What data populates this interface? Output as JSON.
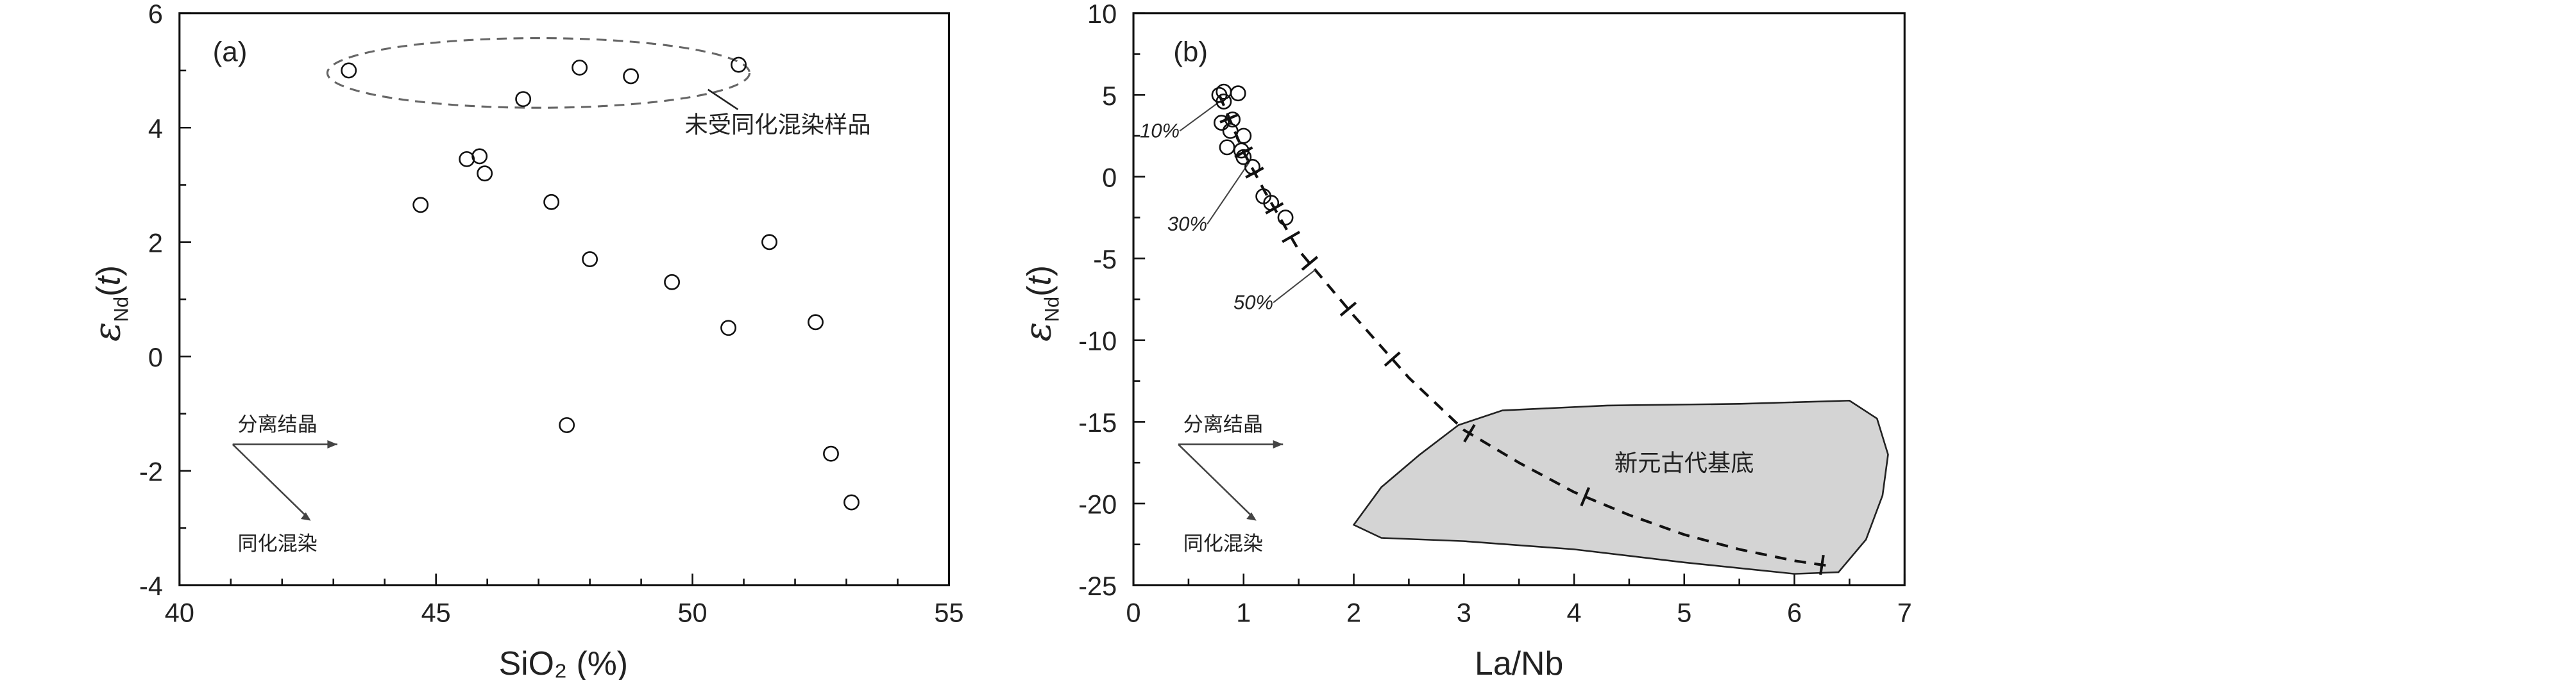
{
  "chart_data": [
    {
      "type": "scatter",
      "panel_label": "(a)",
      "xlabel": "SiO₂ (%)",
      "ylabel": "εNd(t)",
      "xlim": [
        40,
        55
      ],
      "ylim": [
        -4,
        6
      ],
      "xticks": [
        40,
        45,
        50,
        55
      ],
      "yticks": [
        -4,
        -2,
        0,
        2,
        4,
        6
      ],
      "points": [
        {
          "x": 43.3,
          "y": 5.0
        },
        {
          "x": 47.8,
          "y": 5.05
        },
        {
          "x": 48.8,
          "y": 4.9
        },
        {
          "x": 50.9,
          "y": 5.1
        },
        {
          "x": 46.7,
          "y": 4.5
        },
        {
          "x": 45.6,
          "y": 3.45
        },
        {
          "x": 45.85,
          "y": 3.5
        },
        {
          "x": 45.95,
          "y": 3.2
        },
        {
          "x": 44.7,
          "y": 2.65
        },
        {
          "x": 47.25,
          "y": 2.7
        },
        {
          "x": 51.5,
          "y": 2.0
        },
        {
          "x": 48.0,
          "y": 1.7
        },
        {
          "x": 49.6,
          "y": 1.3
        },
        {
          "x": 50.7,
          "y": 0.5
        },
        {
          "x": 52.4,
          "y": 0.6
        },
        {
          "x": 47.55,
          "y": -1.2
        },
        {
          "x": 52.7,
          "y": -1.7
        },
        {
          "x": 53.1,
          "y": -2.55
        }
      ],
      "ellipse_label": "未受同化混染样品",
      "arrow_labels": {
        "horizontal": "分离结晶",
        "diagonal": "同化混染"
      }
    },
    {
      "type": "scatter",
      "panel_label": "(b)",
      "xlabel": "La/Nb",
      "ylabel": "εNd(t)",
      "xlim": [
        0,
        7
      ],
      "ylim": [
        -25,
        10
      ],
      "xticks": [
        0,
        1,
        2,
        3,
        4,
        5,
        6,
        7
      ],
      "yticks": [
        -25,
        -20,
        -15,
        -10,
        -5,
        0,
        5,
        10
      ],
      "points": [
        {
          "x": 0.78,
          "y": 5.0
        },
        {
          "x": 0.82,
          "y": 5.2
        },
        {
          "x": 0.95,
          "y": 5.1
        },
        {
          "x": 0.82,
          "y": 4.6
        },
        {
          "x": 0.9,
          "y": 3.5
        },
        {
          "x": 0.8,
          "y": 3.3
        },
        {
          "x": 0.88,
          "y": 2.8
        },
        {
          "x": 1.0,
          "y": 2.5
        },
        {
          "x": 0.98,
          "y": 1.6
        },
        {
          "x": 0.85,
          "y": 1.8
        },
        {
          "x": 1.0,
          "y": 1.2
        },
        {
          "x": 1.08,
          "y": 0.6
        },
        {
          "x": 1.18,
          "y": -1.2
        },
        {
          "x": 1.25,
          "y": -1.6
        },
        {
          "x": 1.38,
          "y": -2.5
        }
      ],
      "mixing_curve": [
        [
          0.78,
          5.0
        ],
        [
          1.0,
          1.5
        ],
        [
          1.2,
          -1.0
        ],
        [
          1.5,
          -4.5
        ],
        [
          2.0,
          -8.5
        ],
        [
          2.5,
          -12.3
        ],
        [
          3.0,
          -15.5
        ],
        [
          3.5,
          -17.5
        ],
        [
          4.0,
          -19.3
        ],
        [
          4.5,
          -20.7
        ],
        [
          5.0,
          -21.9
        ],
        [
          5.5,
          -22.8
        ],
        [
          6.0,
          -23.5
        ],
        [
          6.3,
          -23.8
        ]
      ],
      "curve_ticks_x": [
        0.87,
        1.0,
        1.1,
        1.28,
        1.43,
        1.6,
        1.95,
        2.35,
        3.05,
        4.1,
        6.25
      ],
      "mix_labels": [
        {
          "text": "10%",
          "x": 0.45,
          "y": 2.9
        },
        {
          "text": "30%",
          "x": 0.7,
          "y": -2.8
        },
        {
          "text": "50%",
          "x": 1.3,
          "y": -7.6
        }
      ],
      "field": {
        "label": "新元古代基底",
        "outline": [
          [
            2.95,
            -15.2
          ],
          [
            3.35,
            -14.3
          ],
          [
            4.3,
            -14.0
          ],
          [
            5.5,
            -13.9
          ],
          [
            6.5,
            -13.7
          ],
          [
            6.75,
            -14.8
          ],
          [
            6.85,
            -17.0
          ],
          [
            6.8,
            -19.5
          ],
          [
            6.65,
            -22.2
          ],
          [
            6.4,
            -24.2
          ],
          [
            6.0,
            -24.3
          ],
          [
            5.0,
            -23.6
          ],
          [
            4.0,
            -22.8
          ],
          [
            3.0,
            -22.3
          ],
          [
            2.25,
            -22.1
          ],
          [
            2.0,
            -21.3
          ],
          [
            2.25,
            -19.0
          ],
          [
            2.6,
            -17.0
          ]
        ]
      },
      "arrow_labels": {
        "horizontal": "分离结晶",
        "diagonal": "同化混染"
      }
    }
  ]
}
